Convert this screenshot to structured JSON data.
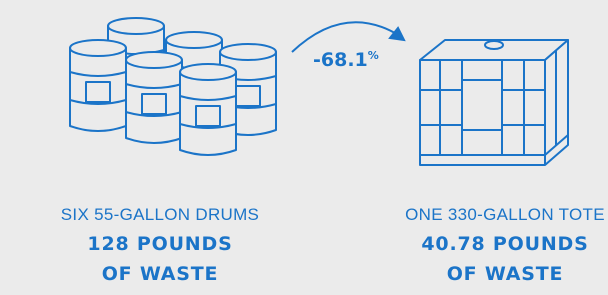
{
  "left": {
    "caption": "SIX 55-GALLON DRUMS",
    "amount": "128 POUNDS",
    "unit": "OF WASTE"
  },
  "change": {
    "number": "-68.1",
    "symbol": "%"
  },
  "right": {
    "caption": "ONE 330-GALLON TOTE",
    "amount": "40.78 POUNDS",
    "unit": "OF WASTE"
  }
}
